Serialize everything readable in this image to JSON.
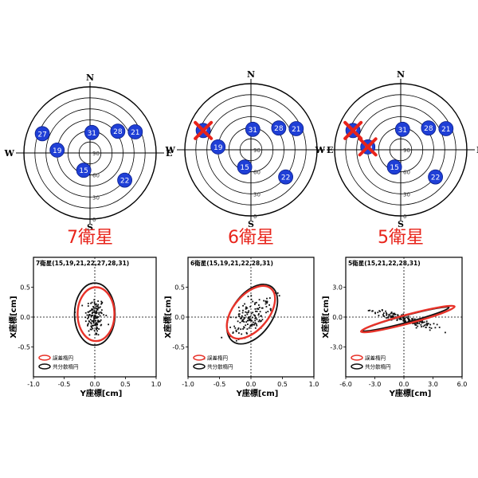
{
  "chart_data": [
    {
      "type": "polar-sky-plot",
      "title": "7衛星",
      "directions": [
        "N",
        "E",
        "S",
        "W"
      ],
      "elevation_ticks": [
        "90",
        "60",
        "30",
        "0"
      ],
      "satellites": [
        {
          "id": "27",
          "az": 292,
          "el": 20,
          "excluded": false
        },
        {
          "id": "31",
          "az": 5,
          "el": 62,
          "excluded": false
        },
        {
          "id": "28",
          "az": 52,
          "el": 42,
          "excluded": false
        },
        {
          "id": "21",
          "az": 65,
          "el": 22,
          "excluded": false
        },
        {
          "id": "19",
          "az": 275,
          "el": 45,
          "excluded": false
        },
        {
          "id": "15",
          "az": 200,
          "el": 65,
          "excluded": false
        },
        {
          "id": "22",
          "az": 128,
          "el": 30,
          "excluded": false
        }
      ]
    },
    {
      "type": "polar-sky-plot",
      "title": "6衛星",
      "directions": [
        "N",
        "E",
        "S",
        "W"
      ],
      "elevation_ticks": [
        "90",
        "60",
        "30",
        "0"
      ],
      "satellites": [
        {
          "id": "27",
          "az": 292,
          "el": 20,
          "excluded": true
        },
        {
          "id": "31",
          "az": 5,
          "el": 62,
          "excluded": false
        },
        {
          "id": "28",
          "az": 52,
          "el": 42,
          "excluded": false
        },
        {
          "id": "21",
          "az": 65,
          "el": 22,
          "excluded": false
        },
        {
          "id": "19",
          "az": 275,
          "el": 45,
          "excluded": false
        },
        {
          "id": "15",
          "az": 200,
          "el": 65,
          "excluded": false
        },
        {
          "id": "22",
          "az": 128,
          "el": 30,
          "excluded": false
        }
      ]
    },
    {
      "type": "polar-sky-plot",
      "title": "5衛星",
      "directions": [
        "N",
        "E",
        "S",
        "W"
      ],
      "elevation_ticks": [
        "90",
        "60",
        "30",
        "0"
      ],
      "satellites": [
        {
          "id": "27",
          "az": 292,
          "el": 20,
          "excluded": true
        },
        {
          "id": "31",
          "az": 5,
          "el": 62,
          "excluded": false
        },
        {
          "id": "28",
          "az": 52,
          "el": 42,
          "excluded": false
        },
        {
          "id": "21",
          "az": 65,
          "el": 22,
          "excluded": false
        },
        {
          "id": "19",
          "az": 275,
          "el": 45,
          "excluded": true
        },
        {
          "id": "15",
          "az": 200,
          "el": 65,
          "excluded": false
        },
        {
          "id": "22",
          "az": 128,
          "el": 30,
          "excluded": false
        }
      ]
    },
    {
      "type": "scatter",
      "title": "7衛星(15,19,21,22,27,28,31)",
      "xlabel": "Y座標[cm]",
      "ylabel": "X座標[cm]",
      "xlim": [
        -1.0,
        1.0
      ],
      "ylim": [
        -1.0,
        1.0
      ],
      "xticks": [
        "-1.0",
        "-0.5",
        "0.0",
        "0.5",
        "1.0"
      ],
      "yticks": [
        "0.5",
        "0.0",
        "-0.5"
      ],
      "grid": "dotted crosshair at origin",
      "legend": [
        {
          "label": "誤差楕円",
          "color": "#e8332a"
        },
        {
          "label": "共分散楕円",
          "color": "#111111"
        }
      ],
      "ellipses": {
        "error": {
          "cx": 0.02,
          "cy": 0.05,
          "rx": 0.3,
          "ry": 0.45,
          "angle_deg": 0
        },
        "covariance": {
          "cx": 0.0,
          "cy": 0.05,
          "rx": 0.33,
          "ry": 0.52,
          "angle_deg": 0
        }
      },
      "scatter_cloud": {
        "count": 140,
        "cx": 0.0,
        "cy": 0.0,
        "sx": 0.08,
        "sy": 0.17,
        "angle_deg": 0
      }
    },
    {
      "type": "scatter",
      "title": "6衛星(15,19,21,22,28,31)",
      "xlabel": "Y座標[cm]",
      "ylabel": "X座標[cm]",
      "xlim": [
        -1.0,
        1.0
      ],
      "ylim": [
        -1.0,
        1.0
      ],
      "xticks": [
        "-1.0",
        "-0.5",
        "0.0",
        "0.5",
        "1.0"
      ],
      "yticks": [
        "0.5",
        "0.0",
        "-0.5"
      ],
      "grid": "dotted crosshair at origin",
      "legend": [
        {
          "label": "誤差楕円",
          "color": "#e8332a"
        },
        {
          "label": "共分散楕円",
          "color": "#111111"
        }
      ],
      "ellipses": {
        "error": {
          "cx": 0.0,
          "cy": 0.08,
          "rx": 0.28,
          "ry": 0.52,
          "angle_deg": -40
        },
        "covariance": {
          "cx": 0.02,
          "cy": 0.05,
          "rx": 0.32,
          "ry": 0.56,
          "angle_deg": -35
        }
      },
      "scatter_cloud": {
        "count": 150,
        "cx": 0.0,
        "cy": 0.0,
        "sx": 0.1,
        "sy": 0.24,
        "angle_deg": -38
      }
    },
    {
      "type": "scatter",
      "title": "5衛星(15,21,22,28,31)",
      "xlabel": "Y座標[cm]",
      "ylabel": "X座標[cm]",
      "xlim": [
        -6.0,
        6.0
      ],
      "ylim": [
        -6.0,
        6.0
      ],
      "xticks": [
        "-6.0",
        "-3.0",
        "0.0",
        "3.0",
        "6.0"
      ],
      "yticks": [
        "3.0",
        "0.0",
        "-3.0"
      ],
      "grid": "dotted crosshair at origin",
      "legend": [
        {
          "label": "誤差楕円",
          "color": "#e8332a"
        },
        {
          "label": "共分散楕円",
          "color": "#111111"
        }
      ],
      "ellipses": {
        "error": {
          "cx": 0.4,
          "cy": -0.2,
          "rx": 5.0,
          "ry": 0.45,
          "angle_deg": 15
        },
        "covariance": {
          "cx": 0.2,
          "cy": -0.2,
          "rx": 4.6,
          "ry": 0.35,
          "angle_deg": 15
        }
      },
      "scatter_cloud": {
        "count": 170,
        "cx": 0.0,
        "cy": -0.2,
        "sx": 1.6,
        "sy": 0.18,
        "angle_deg": -15
      }
    }
  ]
}
